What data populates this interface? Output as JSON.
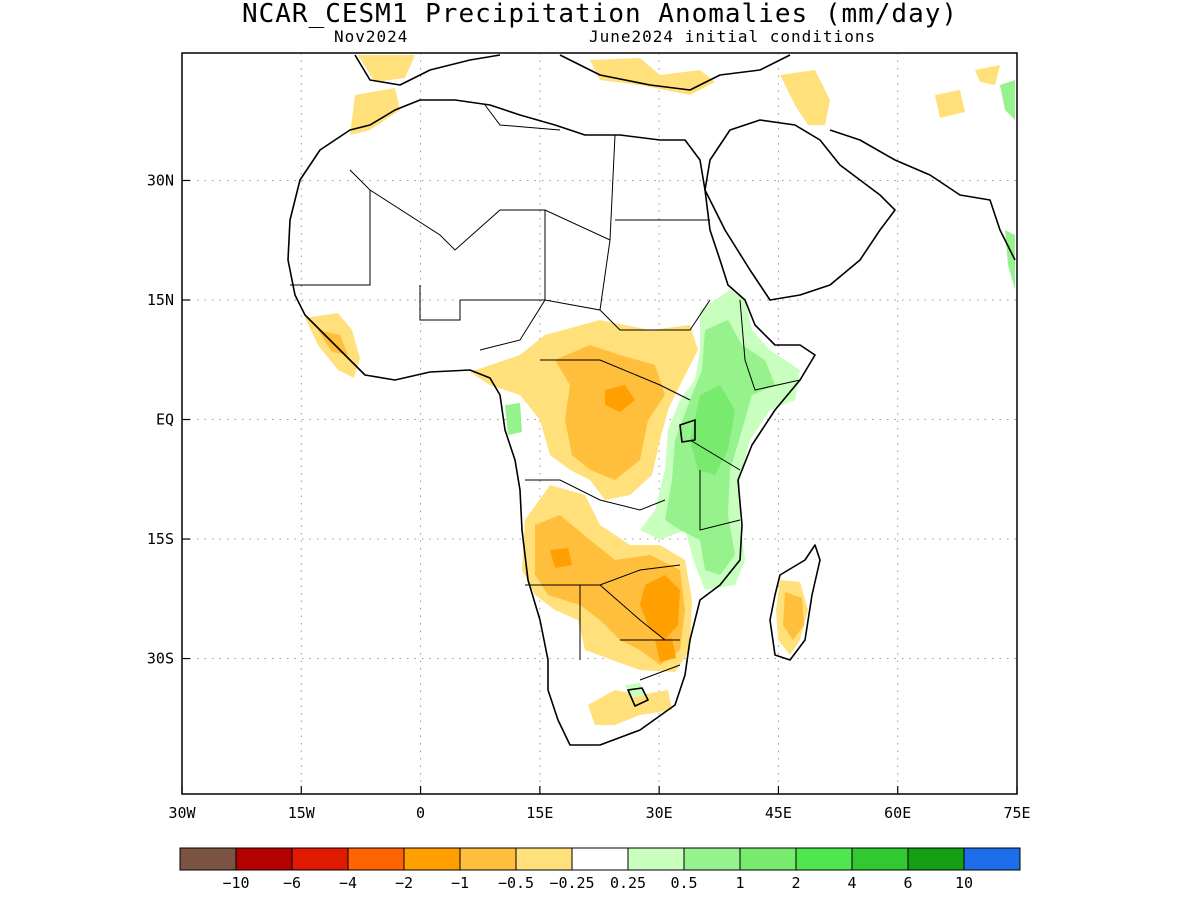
{
  "title": "NCAR_CESM1 Precipitation Anomalies (mm/day)",
  "subtitle_left": "Nov2024",
  "subtitle_right": "June2024 initial conditions",
  "map": {
    "lon_range": [
      -30,
      75
    ],
    "lat_range": [
      -47,
      46
    ],
    "x_ticks": [
      {
        "lon": -30,
        "label": "30W"
      },
      {
        "lon": -15,
        "label": "15W"
      },
      {
        "lon": 0,
        "label": "0"
      },
      {
        "lon": 15,
        "label": "15E"
      },
      {
        "lon": 30,
        "label": "30E"
      },
      {
        "lon": 45,
        "label": "45E"
      },
      {
        "lon": 60,
        "label": "60E"
      },
      {
        "lon": 75,
        "label": "75E"
      }
    ],
    "y_ticks": [
      {
        "lat": 30,
        "label": "30N"
      },
      {
        "lat": 15,
        "label": "15N"
      },
      {
        "lat": 0,
        "label": "EQ"
      },
      {
        "lat": -15,
        "label": "15S"
      },
      {
        "lat": -30,
        "label": "30S"
      }
    ],
    "gridlines": true
  },
  "colorbar": {
    "colors": [
      "#7a5343",
      "#b40000",
      "#e01a00",
      "#ff6400",
      "#ffa000",
      "#ffbe3c",
      "#ffe07a",
      "#ffffff",
      "#c8ffbe",
      "#96f28c",
      "#78eb6e",
      "#50e650",
      "#32c832",
      "#14a014",
      "#1e6eeb"
    ],
    "labels": [
      "-10",
      "-6",
      "-4",
      "-2",
      "-1",
      "-0.5",
      "-0.25",
      "0.25",
      "0.5",
      "1",
      "2",
      "4",
      "6",
      "10"
    ]
  }
}
